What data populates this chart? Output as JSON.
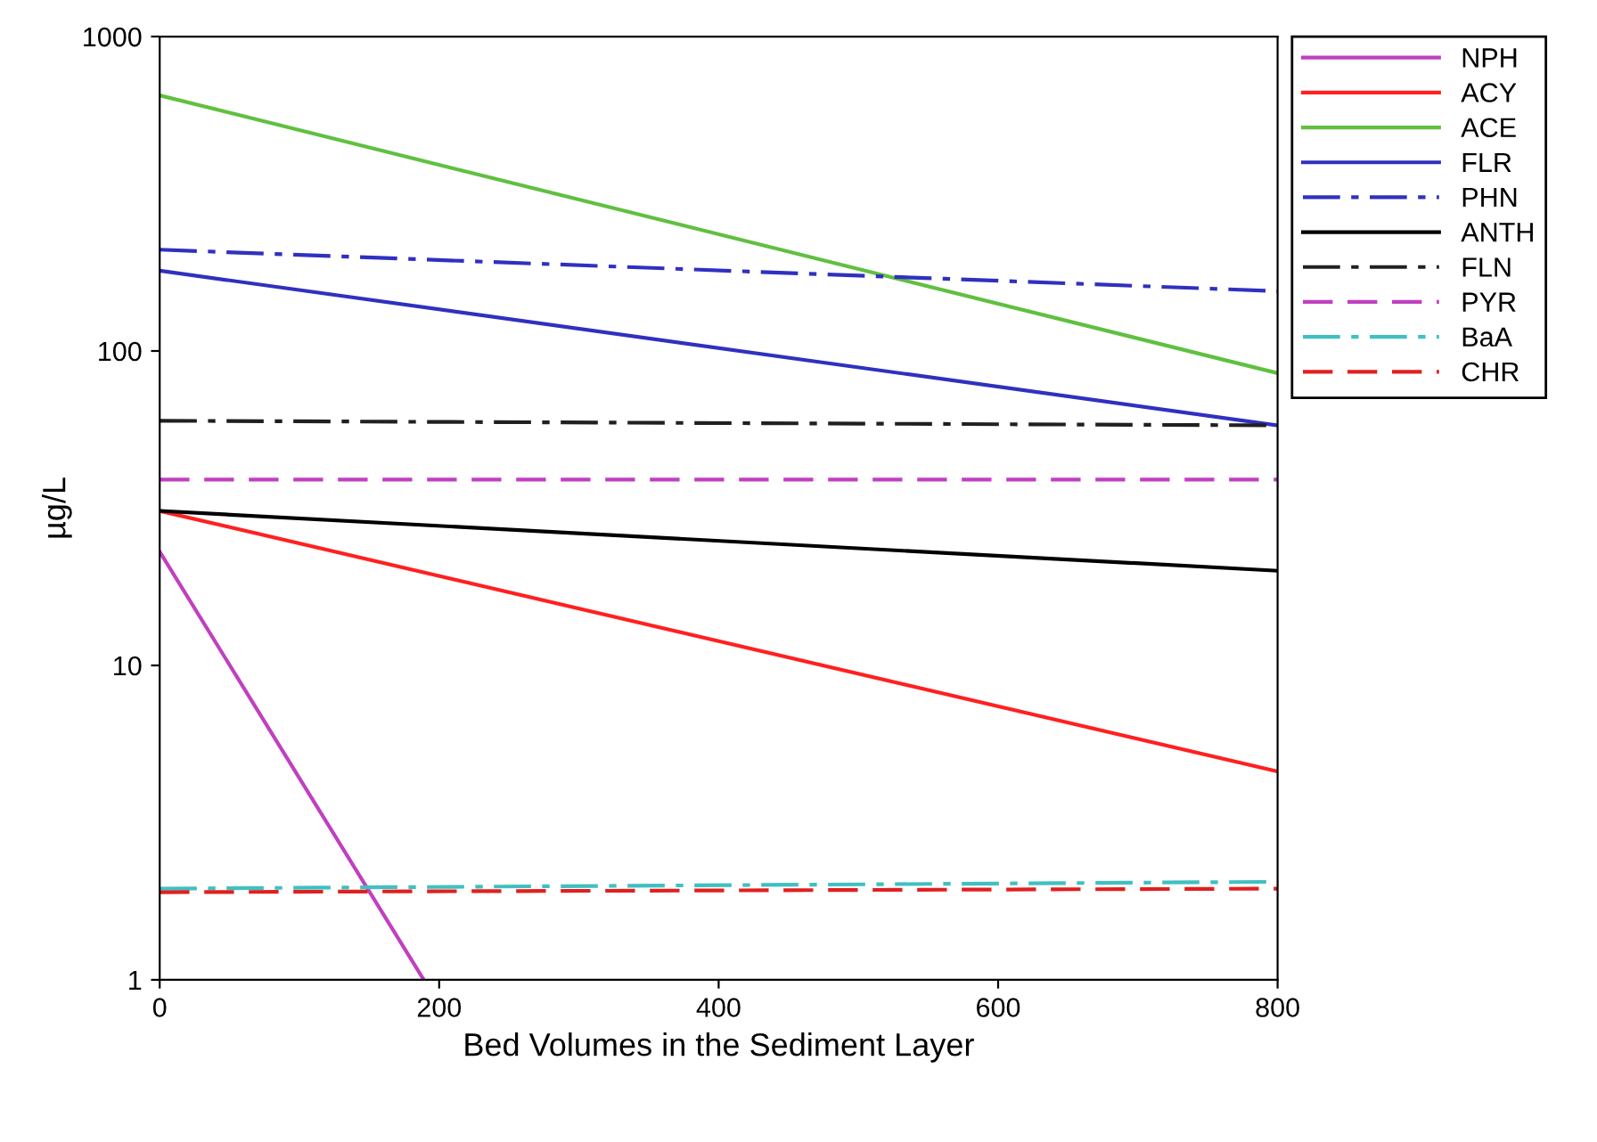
{
  "chart_data": {
    "type": "line",
    "xlabel": "Bed Volumes in the Sediment Layer",
    "ylabel": "µg/L",
    "log": "y",
    "xlim": [
      0,
      800
    ],
    "xticks": [
      0,
      200,
      400,
      600,
      800
    ],
    "ylim": [
      1,
      1000
    ],
    "yticks": [
      1,
      10,
      100,
      1000
    ],
    "grid": false,
    "legend": "top right",
    "marker": "none",
    "series": [
      {
        "name": "NPH",
        "color": "#c040c0",
        "line_style": "solid",
        "x": [
          0,
          189
        ],
        "values": [
          23,
          1
        ]
      },
      {
        "name": "ACY",
        "color": "#ff2020",
        "line_style": "solid",
        "x": [
          0,
          800
        ],
        "values": [
          31,
          4.6
        ]
      },
      {
        "name": "ACE",
        "color": "#60c040",
        "line_style": "solid",
        "x": [
          0,
          800
        ],
        "values": [
          650,
          85
        ]
      },
      {
        "name": "FLR",
        "color": "#3030c0",
        "line_style": "solid",
        "x": [
          0,
          800
        ],
        "values": [
          180,
          58
        ]
      },
      {
        "name": "PHN",
        "color": "#3030c0",
        "line_style": "dashdot",
        "x": [
          0,
          800
        ],
        "values": [
          210,
          155
        ]
      },
      {
        "name": "ANTH",
        "color": "#000000",
        "line_style": "solid",
        "x": [
          0,
          800
        ],
        "values": [
          31,
          20
        ]
      },
      {
        "name": "FLN",
        "color": "#202020",
        "line_style": "dashdot",
        "x": [
          0,
          800
        ],
        "values": [
          60,
          58
        ]
      },
      {
        "name": "PYR",
        "color": "#c040c0",
        "line_style": "dashed",
        "x": [
          0,
          800
        ],
        "values": [
          39,
          39
        ]
      },
      {
        "name": "BaA",
        "color": "#40c0c0",
        "line_style": "dashdot",
        "x": [
          0,
          800
        ],
        "values": [
          1.95,
          2.05
        ]
      },
      {
        "name": "CHR",
        "color": "#e02020",
        "line_style": "dashed",
        "x": [
          0,
          800
        ],
        "values": [
          1.9,
          1.95
        ]
      }
    ]
  }
}
